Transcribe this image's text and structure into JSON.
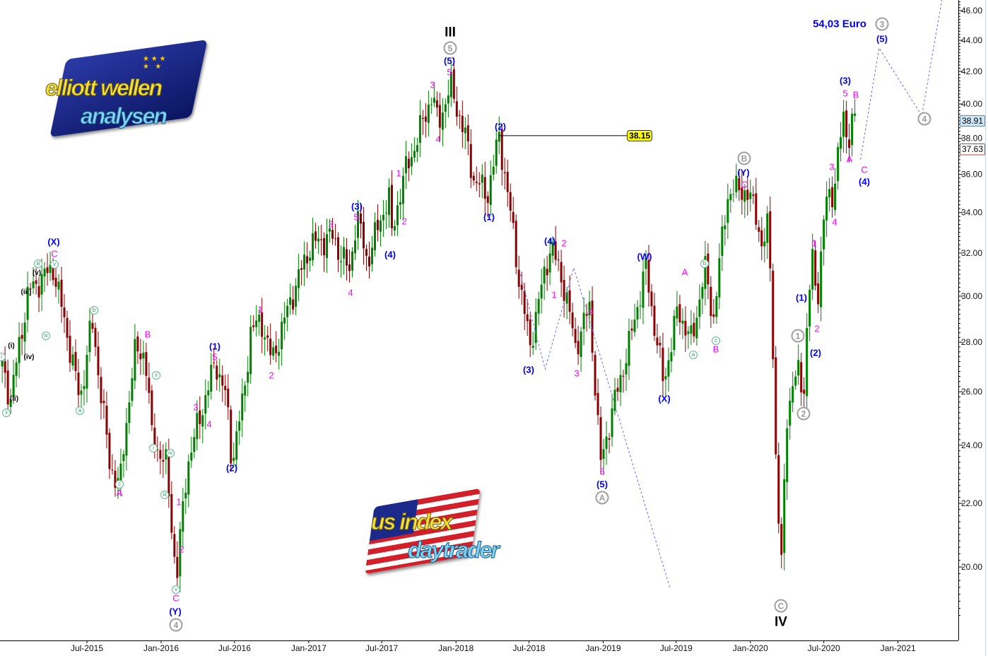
{
  "chart_data": {
    "type": "candlestick",
    "interval": "weekly",
    "y_scale": "log",
    "ylim": [
      18.5,
      47
    ],
    "y_ticks": [
      "20.00",
      "22.00",
      "24.00",
      "26.00",
      "28.00",
      "30.00",
      "32.00",
      "34.00",
      "36.00",
      "38.00",
      "40.00",
      "42.00",
      "44.00",
      "46.00"
    ],
    "x_ticks": [
      {
        "label": "Jul-2015",
        "date": "2015-07-01"
      },
      {
        "label": "Jan-2016",
        "date": "2016-01-01"
      },
      {
        "label": "Jul-2016",
        "date": "2016-07-01"
      },
      {
        "label": "Jan-2017",
        "date": "2017-01-01"
      },
      {
        "label": "Jul-2017",
        "date": "2017-07-01"
      },
      {
        "label": "Jan-2018",
        "date": "2018-01-01"
      },
      {
        "label": "Jul-2018",
        "date": "2018-07-01"
      },
      {
        "label": "Jan-2019",
        "date": "2019-01-01"
      },
      {
        "label": "Jul-2019",
        "date": "2019-07-01"
      },
      {
        "label": "Jan-2020",
        "date": "2020-01-01"
      },
      {
        "label": "Jul-2020",
        "date": "2020-07-01"
      },
      {
        "label": "Jan-2021",
        "date": "2021-01-01"
      }
    ],
    "price_path": [
      [
        "2014-12-03",
        27.0
      ],
      [
        "2014-12-24",
        25.7
      ],
      [
        "2015-02-06",
        30.2
      ],
      [
        "2015-04-08",
        31.3
      ],
      [
        "2015-06-14",
        25.6
      ],
      [
        "2015-07-13",
        28.9
      ],
      [
        "2015-08-26",
        23.3
      ],
      [
        "2015-09-21",
        22.6
      ],
      [
        "2015-10-26",
        27.5
      ],
      [
        "2015-11-22",
        27.6
      ],
      [
        "2015-12-09",
        24.3
      ],
      [
        "2016-01-13",
        23.3
      ],
      [
        "2016-02-08",
        19.6
      ],
      [
        "2016-03-06",
        23.3
      ],
      [
        "2016-05-15",
        27.2
      ],
      [
        "2016-06-10",
        25.8
      ],
      [
        "2016-06-24",
        23.4
      ],
      [
        "2016-07-24",
        25.8
      ],
      [
        "2016-08-10",
        28.5
      ],
      [
        "2016-09-06",
        28.9
      ],
      [
        "2016-10-02",
        27.2
      ],
      [
        "2016-11-15",
        29.7
      ],
      [
        "2017-01-06",
        32.4
      ],
      [
        "2017-02-28",
        32.8
      ],
      [
        "2017-04-12",
        31.1
      ],
      [
        "2017-04-30",
        33.9
      ],
      [
        "2017-05-26",
        31.6
      ],
      [
        "2017-07-18",
        34.9
      ],
      [
        "2017-07-26",
        32.9
      ],
      [
        "2017-08-22",
        35.7
      ],
      [
        "2017-09-26",
        37.9
      ],
      [
        "2017-11-03",
        40.6
      ],
      [
        "2017-11-17",
        38.8
      ],
      [
        "2017-12-19",
        41.1
      ],
      [
        "2018-01-26",
        37.9
      ],
      [
        "2018-02-13",
        35.8
      ],
      [
        "2018-03-20",
        34.9
      ],
      [
        "2018-04-18",
        38.1
      ],
      [
        "2018-05-11",
        34.7
      ],
      [
        "2018-06-06",
        30.8
      ],
      [
        "2018-07-03",
        27.8
      ],
      [
        "2018-08-24",
        32.4
      ],
      [
        "2018-09-28",
        30.3
      ],
      [
        "2018-10-24",
        27.8
      ],
      [
        "2018-11-28",
        29.5
      ],
      [
        "2018-12-25",
        23.3
      ],
      [
        "2019-01-29",
        25.6
      ],
      [
        "2019-03-05",
        27.8
      ],
      [
        "2019-04-17",
        31.3
      ],
      [
        "2019-05-05",
        29.0
      ],
      [
        "2019-05-31",
        26.3
      ],
      [
        "2019-07-05",
        29.4
      ],
      [
        "2019-08-09",
        28.0
      ],
      [
        "2019-09-10",
        31.3
      ],
      [
        "2019-10-01",
        28.9
      ],
      [
        "2019-11-05",
        34.9
      ],
      [
        "2019-12-10",
        35.3
      ],
      [
        "2020-01-14",
        34.2
      ],
      [
        "2020-01-31",
        32.0
      ],
      [
        "2020-02-14",
        33.5
      ],
      [
        "2020-02-21",
        30.8
      ],
      [
        "2020-03-06",
        22.3
      ],
      [
        "2020-03-18",
        20.1
      ],
      [
        "2020-04-01",
        25.2
      ],
      [
        "2020-04-28",
        26.9
      ],
      [
        "2020-05-12",
        26.0
      ],
      [
        "2020-06-02",
        32.0
      ],
      [
        "2020-06-14",
        29.7
      ],
      [
        "2020-07-07",
        34.7
      ],
      [
        "2020-07-24",
        35.0
      ],
      [
        "2020-08-11",
        37.9
      ],
      [
        "2020-08-21",
        39.5
      ],
      [
        "2020-08-28",
        37.8
      ],
      [
        "2020-09-15",
        39.5
      ],
      [
        "2020-09-20",
        37.6
      ]
    ],
    "price_tags": [
      {
        "text": "38.91",
        "value": 38.91,
        "bg": "#cfe6f7"
      },
      {
        "text": "37.63",
        "value": 37.63,
        "bg": "#ffffff"
      }
    ],
    "level_line": {
      "text": "38.15",
      "value": 38.15,
      "from": "2018-04-18",
      "to": "2019-03-01",
      "bg": "#ffff00"
    },
    "target_text": "54,03 Euro",
    "projections": [
      [
        [
          "2018-06-10",
          31.0
        ],
        [
          "2018-08-10",
          26.9
        ],
        [
          "2018-10-20",
          31.3
        ],
        [
          "2019-06-15",
          19.4
        ]
      ],
      [
        [
          "2020-09-30",
          36.8
        ],
        [
          "2020-11-15",
          43.5
        ],
        [
          "2021-03-01",
          39.3
        ],
        [
          "2021-04-20",
          46.8
        ]
      ]
    ],
    "colors": {
      "up": "#008000",
      "down": "#8b0000",
      "wave_minor": "#ff00ff",
      "wave_intermediate": "#0000ff",
      "projection": "#6a6aff"
    },
    "annotations": [
      {
        "t": "(X)",
        "k": "b"
      },
      {
        "t": "C",
        "k": "m"
      },
      {
        "t": "iii",
        "k": "c"
      },
      {
        "t": "v",
        "k": "c"
      },
      {
        "t": "(v)",
        "k": "k"
      },
      {
        "t": "(iii)",
        "k": "k"
      },
      {
        "t": "iv",
        "k": "c"
      },
      {
        "t": "(i)",
        "k": "k"
      },
      {
        "t": "(iv)",
        "k": "k"
      },
      {
        "t": "i",
        "k": "c"
      },
      {
        "t": "(ii)",
        "k": "k"
      },
      {
        "t": "ii",
        "k": "c"
      },
      {
        "t": "b",
        "k": "c"
      },
      {
        "t": "a",
        "k": "c"
      },
      {
        "t": "B",
        "k": "m"
      },
      {
        "t": "ii",
        "k": "c"
      },
      {
        "t": "c",
        "k": "c"
      },
      {
        "t": "A",
        "k": "m"
      },
      {
        "t": "i",
        "k": "c"
      },
      {
        "t": "iv",
        "k": "c"
      },
      {
        "t": "iii",
        "k": "c"
      },
      {
        "t": "1",
        "k": "m"
      },
      {
        "t": "2",
        "k": "m"
      },
      {
        "t": "v",
        "k": "c"
      },
      {
        "t": "C",
        "k": "m"
      },
      {
        "t": "(Y)",
        "k": "b"
      },
      {
        "t": "4",
        "k": "g"
      },
      {
        "t": "3",
        "k": "m"
      },
      {
        "t": "4",
        "k": "m"
      },
      {
        "t": "5",
        "k": "m"
      },
      {
        "t": "(1)",
        "k": "b"
      },
      {
        "t": "(2)",
        "k": "b"
      },
      {
        "t": "1",
        "k": "m"
      },
      {
        "t": "2",
        "k": "m"
      },
      {
        "t": "3",
        "k": "m"
      },
      {
        "t": "4",
        "k": "m"
      },
      {
        "t": "5",
        "k": "m"
      },
      {
        "t": "(3)",
        "k": "b"
      },
      {
        "t": "(4)",
        "k": "b"
      },
      {
        "t": "2",
        "k": "m"
      },
      {
        "t": "1",
        "k": "m"
      },
      {
        "t": "3",
        "k": "m"
      },
      {
        "t": "4",
        "k": "m"
      },
      {
        "t": "5",
        "k": "m"
      },
      {
        "t": "(5)",
        "k": "b"
      },
      {
        "t": "5",
        "k": "g"
      },
      {
        "t": "III",
        "k": "K"
      },
      {
        "t": "(2)",
        "k": "b"
      },
      {
        "t": "(1)",
        "k": "b"
      },
      {
        "t": "(3)",
        "k": "b"
      },
      {
        "t": "(4)",
        "k": "b"
      },
      {
        "t": "2",
        "k": "m"
      },
      {
        "t": "1",
        "k": "m"
      },
      {
        "t": "3",
        "k": "m"
      },
      {
        "t": "4",
        "k": "m"
      },
      {
        "t": "5",
        "k": "m"
      },
      {
        "t": "(5)",
        "k": "b"
      },
      {
        "t": "A",
        "k": "g"
      },
      {
        "t": "(W)",
        "k": "b"
      },
      {
        "t": "(X)",
        "k": "b"
      },
      {
        "t": "A",
        "k": "m"
      },
      {
        "t": "b",
        "k": "c"
      },
      {
        "t": "a",
        "k": "c"
      },
      {
        "t": "c",
        "k": "c"
      },
      {
        "t": "B",
        "k": "m"
      },
      {
        "t": "B",
        "k": "g"
      },
      {
        "t": "(Y)",
        "k": "b"
      },
      {
        "t": "C",
        "k": "m"
      },
      {
        "t": "IV",
        "k": "K"
      },
      {
        "t": "C",
        "k": "g"
      },
      {
        "t": "1",
        "k": "g"
      },
      {
        "t": "2",
        "k": "g"
      },
      {
        "t": "(1)",
        "k": "b"
      },
      {
        "t": "2",
        "k": "m"
      },
      {
        "t": "(2)",
        "k": "b"
      },
      {
        "t": "1",
        "k": "m"
      },
      {
        "t": "4",
        "k": "m"
      },
      {
        "t": "3",
        "k": "m"
      },
      {
        "t": "A",
        "k": "m"
      },
      {
        "t": "(3)",
        "k": "b"
      },
      {
        "t": "5",
        "k": "m"
      },
      {
        "t": "B",
        "k": "m"
      },
      {
        "t": "C",
        "k": "m"
      },
      {
        "t": "(4)",
        "k": "b"
      },
      {
        "t": "(5)",
        "k": "b"
      },
      {
        "t": "3",
        "k": "g"
      },
      {
        "t": "4",
        "k": "g"
      }
    ]
  },
  "logos": {
    "top_left": {
      "line1": "elliott wellen",
      "line2": "analysen"
    },
    "bottom": {
      "line1": "us index",
      "line2": "daytrader"
    }
  }
}
